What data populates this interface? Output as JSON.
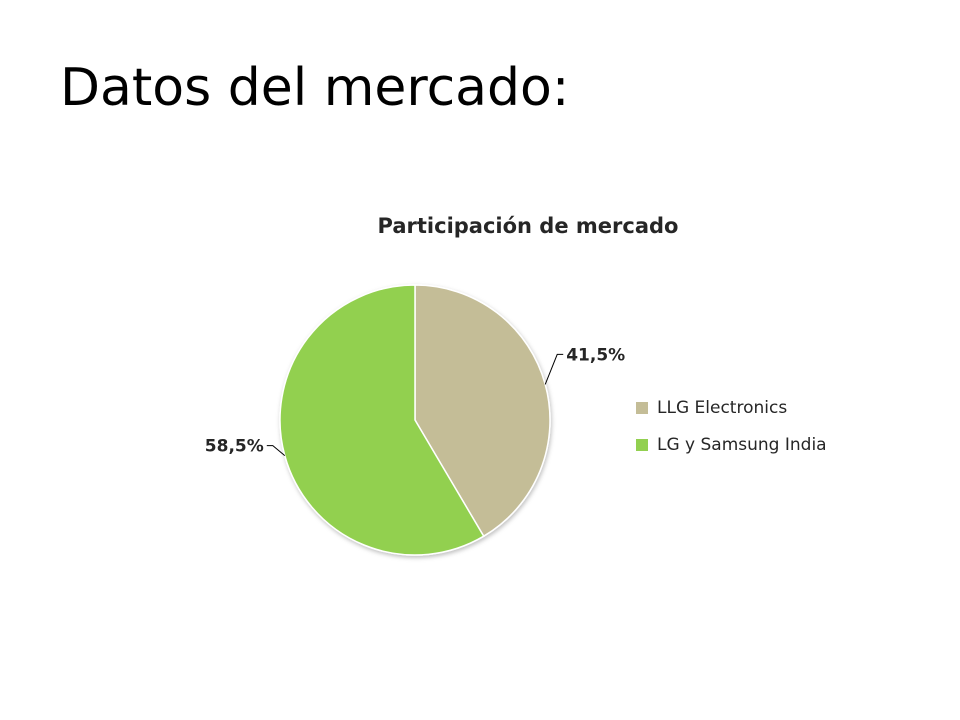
{
  "slide": {
    "title": "Datos del mercado:"
  },
  "chart_data": {
    "type": "pie",
    "title": "Participación de mercado",
    "categories": [
      "LLG Electronics",
      "LG y Samsung India"
    ],
    "values": [
      41.5,
      58.5
    ],
    "data_labels": [
      "41,5%",
      "58,5%"
    ],
    "colors": [
      "#c4bd97",
      "#92d050"
    ],
    "legend": "right"
  }
}
